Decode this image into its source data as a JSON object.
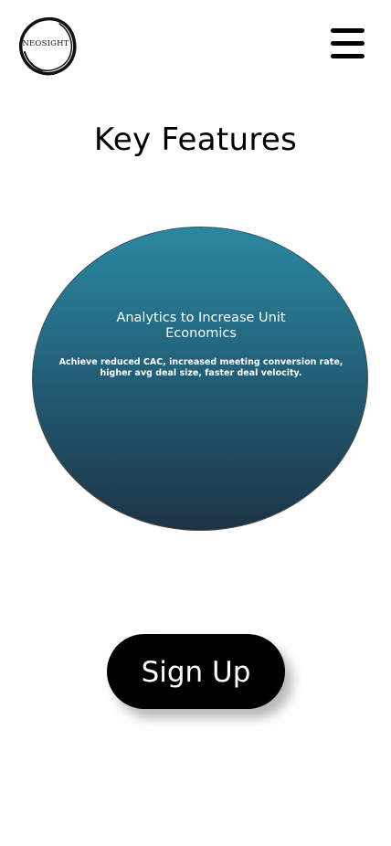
{
  "header": {
    "logo_text": "NEOSIGHT",
    "menu_icon": "hamburger-menu-icon"
  },
  "main": {
    "title": "Key Features",
    "feature": {
      "title": "Analytics to Increase Unit Economics",
      "description": "Achieve reduced CAC, increased meeting conversion rate, higher avg deal size, faster deal velocity."
    },
    "signup_label": "Sign Up"
  },
  "colors": {
    "background": "#ffffff",
    "circle_top": "#2a88a0",
    "circle_bottom": "#1c3345",
    "button": "#000000",
    "button_text": "#ffffff"
  }
}
